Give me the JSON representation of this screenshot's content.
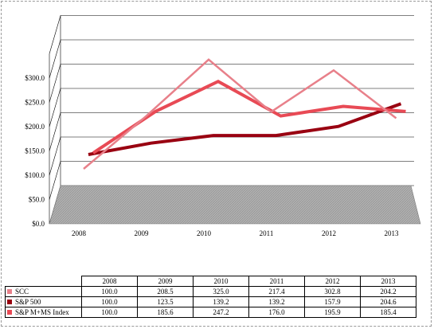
{
  "chart_data": {
    "type": "line",
    "title": "",
    "xlabel": "",
    "ylabel": "",
    "categories": [
      "2008",
      "2009",
      "2010",
      "2011",
      "2012",
      "2013"
    ],
    "y_tick_labels": [
      "$0.0",
      "$50.0",
      "$100.0",
      "$150.0",
      "$200.0",
      "$250.0",
      "$300.0"
    ],
    "ylim": [
      0,
      350
    ],
    "grid": true,
    "legend": "table-below",
    "series": [
      {
        "name": "SCC",
        "values": [
          100.0,
          208.5,
          325.0,
          217.4,
          302.8,
          204.2
        ],
        "color": "#e8808a"
      },
      {
        "name": "S&P 500",
        "values": [
          100.0,
          123.5,
          139.2,
          139.2,
          157.9,
          204.6
        ],
        "color": "#990011"
      },
      {
        "name": "S&P M+MS Index",
        "values": [
          100.0,
          185.6,
          247.2,
          176.0,
          195.9,
          185.4
        ],
        "color": "#e84a55"
      }
    ]
  },
  "table": {
    "columns": [
      "2008",
      "2009",
      "2010",
      "2011",
      "2012",
      "2013"
    ],
    "rows": [
      {
        "label": "SCC",
        "cells": [
          "100.0",
          "208.5",
          "325.0",
          "217.4",
          "302.8",
          "204.2"
        ]
      },
      {
        "label": "S&P 500",
        "cells": [
          "100.0",
          "123.5",
          "139.2",
          "139.2",
          "157.9",
          "204.6"
        ]
      },
      {
        "label": "S&P M+MS Index",
        "cells": [
          "100.0",
          "185.6",
          "247.2",
          "176.0",
          "195.9",
          "185.4"
        ]
      }
    ]
  },
  "colors": {
    "floor": "#a6a6a6",
    "gridline": "#000000"
  }
}
